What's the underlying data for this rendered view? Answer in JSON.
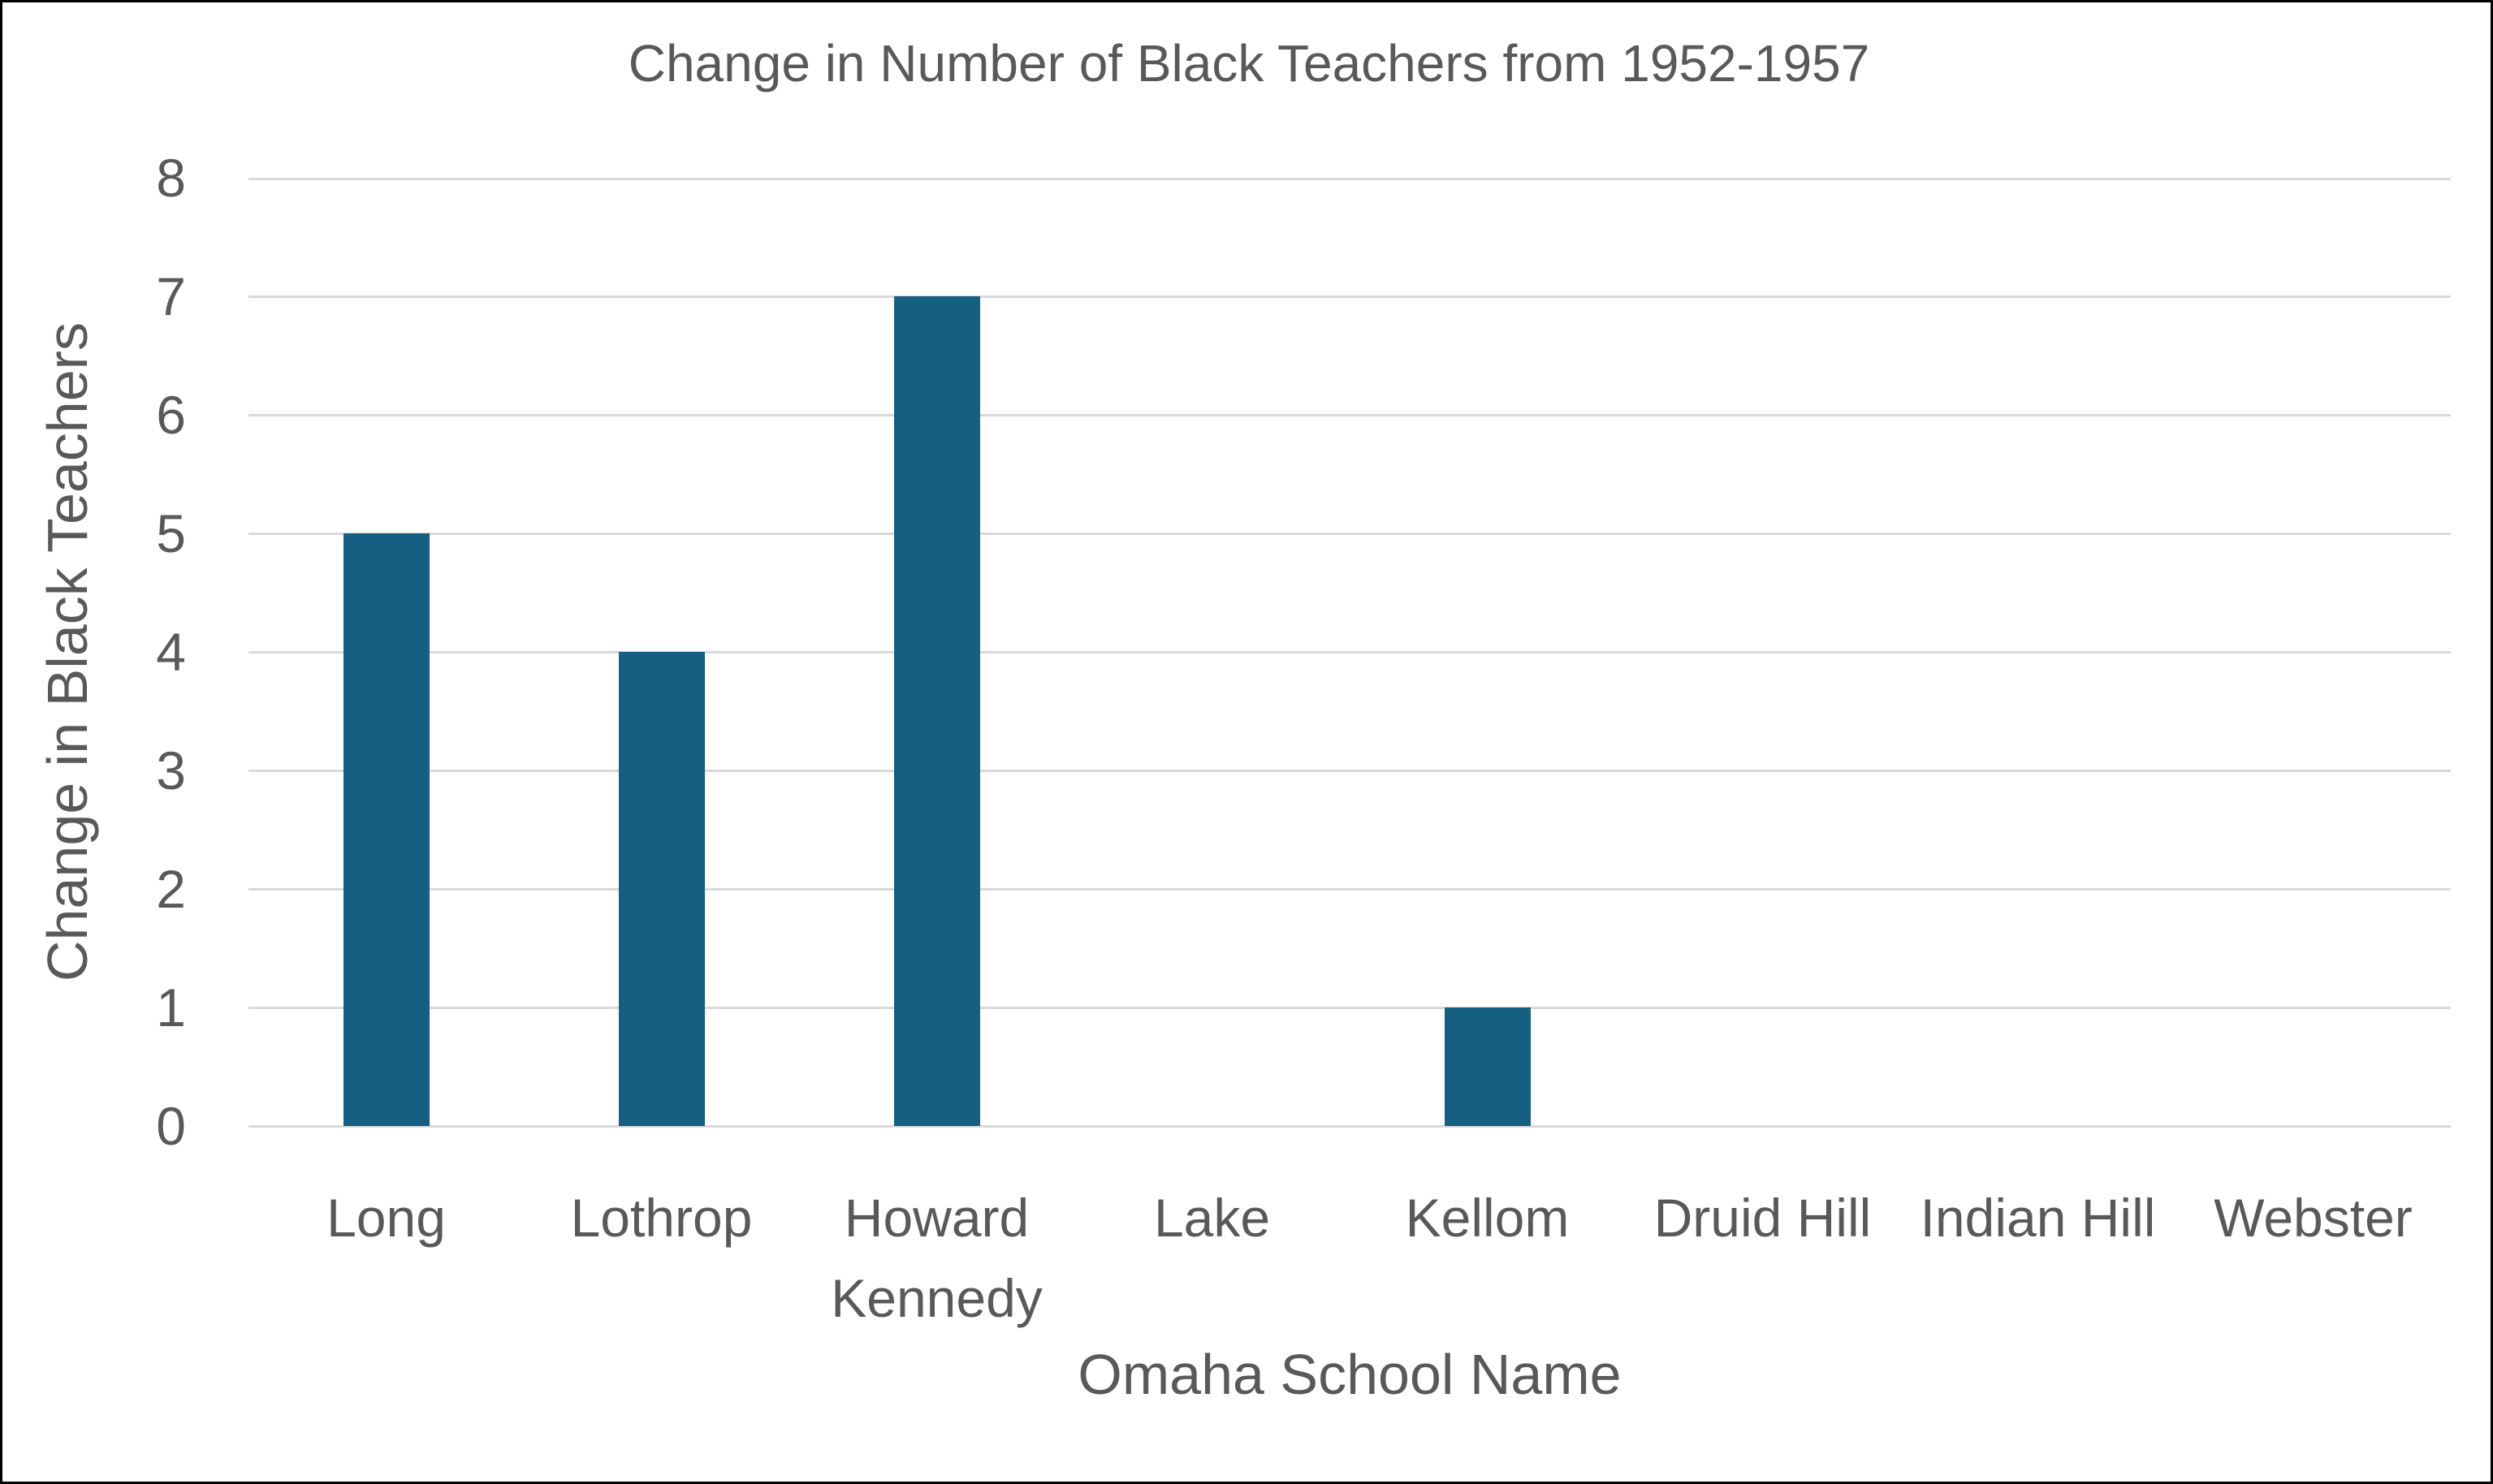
{
  "chart_data": {
    "type": "bar",
    "title": "Change in Number of Black Teachers from 1952-1957",
    "categories": [
      "Long",
      "Lothrop",
      "Howard Kennedy",
      "Lake",
      "Kellom",
      "Druid Hill",
      "Indian Hill",
      "Webster"
    ],
    "values": [
      5,
      4,
      7,
      0,
      1,
      0,
      0,
      0
    ],
    "xlabel": "Omaha School Name",
    "ylabel": "Change in Black Teachers",
    "ylim": [
      0,
      8
    ],
    "yticks": [
      0,
      1,
      2,
      3,
      4,
      5,
      6,
      7,
      8
    ],
    "grid": true,
    "legend": false,
    "bar_color": "#156082",
    "text_color": "#595959",
    "gridline_color": "#D9D9D9",
    "background_color": "#FFFFFF",
    "border_color": "#000000"
  }
}
